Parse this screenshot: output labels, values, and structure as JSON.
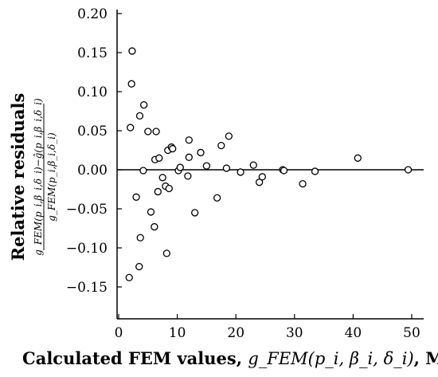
{
  "chart_data": {
    "type": "scatter",
    "title": "",
    "xlabel_text": "Calculated FEM values, ",
    "xlabel_math": "g_FEM(p_i, β_i, δ_i)",
    "xlabel_unit": ", MPa",
    "ylabel_text": "Relative residuals",
    "ylabel_numerator": "g_FEM(p_i,β_i,δ_i)−ĝ(p_i,β_i,δ_i)",
    "ylabel_denominator": "g_FEM(p_i,β_i,δ_i)",
    "xlim": [
      0,
      52
    ],
    "ylim": [
      -0.18,
      0.2
    ],
    "xticks": [
      0,
      10,
      20,
      30,
      40,
      50
    ],
    "xtick_labels": [
      "0",
      "10",
      "20",
      "30",
      "40",
      "50"
    ],
    "yticks": [
      -0.15,
      -0.1,
      -0.05,
      0.0,
      0.05,
      0.1,
      0.15,
      0.2
    ],
    "ytick_labels": [
      "−0.15",
      "−0.10",
      "−0.05",
      "0.00",
      "0.05",
      "0.10",
      "0.15",
      "0.20"
    ],
    "reference_line_y": 0,
    "grid": false,
    "points": [
      {
        "x": 1.8,
        "y": -0.138
      },
      {
        "x": 2.0,
        "y": 0.054
      },
      {
        "x": 2.2,
        "y": 0.11
      },
      {
        "x": 2.3,
        "y": 0.152
      },
      {
        "x": 3.0,
        "y": -0.035
      },
      {
        "x": 3.5,
        "y": -0.124
      },
      {
        "x": 3.6,
        "y": 0.069
      },
      {
        "x": 3.7,
        "y": -0.087
      },
      {
        "x": 4.2,
        "y": -0.001
      },
      {
        "x": 4.3,
        "y": 0.083
      },
      {
        "x": 5.0,
        "y": 0.049
      },
      {
        "x": 5.5,
        "y": -0.054
      },
      {
        "x": 6.1,
        "y": -0.073
      },
      {
        "x": 6.2,
        "y": 0.013
      },
      {
        "x": 6.4,
        "y": 0.049
      },
      {
        "x": 6.7,
        "y": -0.028
      },
      {
        "x": 6.9,
        "y": 0.015
      },
      {
        "x": 7.5,
        "y": -0.01
      },
      {
        "x": 8.0,
        "y": -0.021
      },
      {
        "x": 8.2,
        "y": -0.107
      },
      {
        "x": 8.4,
        "y": 0.025
      },
      {
        "x": 8.6,
        "y": -0.024
      },
      {
        "x": 9.0,
        "y": 0.029
      },
      {
        "x": 9.2,
        "y": 0.027
      },
      {
        "x": 10.2,
        "y": -0.001
      },
      {
        "x": 10.5,
        "y": 0.003
      },
      {
        "x": 11.8,
        "y": -0.008
      },
      {
        "x": 12.0,
        "y": 0.016
      },
      {
        "x": 12.0,
        "y": 0.038
      },
      {
        "x": 13.0,
        "y": -0.055
      },
      {
        "x": 14.0,
        "y": 0.022
      },
      {
        "x": 15.0,
        "y": 0.005
      },
      {
        "x": 16.8,
        "y": -0.036
      },
      {
        "x": 17.5,
        "y": 0.031
      },
      {
        "x": 18.4,
        "y": 0.002
      },
      {
        "x": 18.8,
        "y": 0.043
      },
      {
        "x": 20.8,
        "y": -0.003
      },
      {
        "x": 23.0,
        "y": 0.006
      },
      {
        "x": 24.0,
        "y": -0.016
      },
      {
        "x": 24.5,
        "y": -0.009
      },
      {
        "x": 28.0,
        "y": 0.0
      },
      {
        "x": 28.2,
        "y": -0.001
      },
      {
        "x": 31.4,
        "y": -0.018
      },
      {
        "x": 33.5,
        "y": -0.002
      },
      {
        "x": 40.8,
        "y": 0.015
      },
      {
        "x": 49.4,
        "y": 0.0
      }
    ]
  }
}
